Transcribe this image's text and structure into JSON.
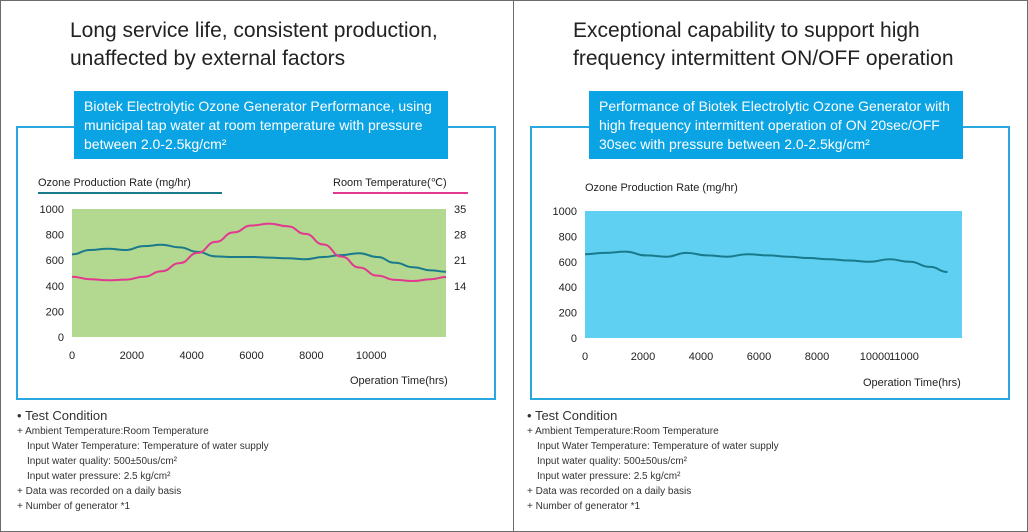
{
  "left": {
    "headline": [
      "Long service life, consistent production,",
      "unaffected by external factors"
    ],
    "box_text": [
      "Biotek Electrolytic Ozone Generator Performance, using",
      "municipal tap water at room temperature with pressure",
      "between 2.0-2.5kg/cm²"
    ],
    "test_condition": {
      "title": "Test Condition",
      "lines": [
        "+ Ambient Temperature:Room Temperature",
        "   Input Water Temperature: Temperature of water supply",
        "   Input water quality: 500±50us/cm²",
        "   Input water pressure: 2.5 kg/cm²",
        "+ Data was recorded on a daily basis",
        "+ Number of generator *1"
      ]
    }
  },
  "right": {
    "headline": [
      "Exceptional capability to support high",
      "frequency intermittent ON/OFF operation"
    ],
    "box_text": [
      "Performance of Biotek Electrolytic Ozone Generator with",
      "high frequency intermittent operation of ON 20sec/OFF",
      "30sec with pressure between 2.0-2.5kg/cm²"
    ],
    "test_condition": {
      "title": "Test Condition",
      "lines": [
        "+ Ambient Temperature:Room Temperature",
        "   Input Water Temperature: Temperature of water supply",
        "   Input water quality: 500±50us/cm²",
        "   Input water pressure: 2.5 kg/cm²",
        "+ Data was recorded on a daily basis",
        "+ Number of generator *1"
      ]
    }
  },
  "colors": {
    "accent_blue": "#0aa3e4",
    "frame_blue": "#29a8e0",
    "ozone_line": "#1a7a8c",
    "temp_line": "#e2388f",
    "left_plot_bg": "#b3d88f",
    "right_plot_bg": "#5fd0f2"
  },
  "chart_data": [
    {
      "type": "line",
      "title": "",
      "xlabel": "Operation Time(hrs)",
      "ylabel": "Ozone Production Rate (mg/hr)",
      "y2label": "Room Temperature(℃)",
      "xlim": [
        0,
        12500
      ],
      "ylim": [
        0,
        1000
      ],
      "y2lim": [
        0,
        35
      ],
      "x_ticks": [
        "0",
        "2000",
        "4000",
        "6000",
        "8000",
        "10000"
      ],
      "x_tick_values": [
        0,
        2000,
        4000,
        6000,
        8000,
        10000
      ],
      "y_ticks": [
        "0",
        "200",
        "400",
        "600",
        "800",
        "1000"
      ],
      "y_tick_values": [
        0,
        200,
        400,
        600,
        800,
        1000
      ],
      "y2_ticks": [
        "14",
        "21",
        "28",
        "35"
      ],
      "y2_tick_values": [
        14,
        21,
        28,
        35
      ],
      "grid": false,
      "legend": "top",
      "series": [
        {
          "name": "Ozone Production Rate (mg/hr)",
          "axis": "left",
          "color": "#1a7a8c",
          "x": [
            0,
            600,
            1200,
            1800,
            2400,
            3000,
            3600,
            4200,
            4800,
            5400,
            6000,
            6600,
            7200,
            7800,
            8400,
            9000,
            9600,
            10200,
            10800,
            11400,
            12000,
            12500
          ],
          "y": [
            645,
            680,
            690,
            680,
            710,
            720,
            700,
            665,
            630,
            625,
            625,
            620,
            615,
            608,
            625,
            640,
            655,
            625,
            580,
            545,
            520,
            510
          ]
        },
        {
          "name": "Room Temperature(℃)",
          "axis": "right",
          "color": "#e2388f",
          "x": [
            0,
            600,
            1200,
            1800,
            2400,
            3000,
            3600,
            4200,
            4800,
            5400,
            6000,
            6600,
            7200,
            7800,
            8400,
            9000,
            9600,
            10200,
            10800,
            11400,
            12000,
            12500
          ],
          "y": [
            16.5,
            15.8,
            15.5,
            15.7,
            16.5,
            18.0,
            20.2,
            23.0,
            26.0,
            28.6,
            30.5,
            31.0,
            30.3,
            28.2,
            25.3,
            22.0,
            19.0,
            16.8,
            15.6,
            15.3,
            15.8,
            16.4
          ]
        }
      ]
    },
    {
      "type": "line",
      "title": "",
      "xlabel": "Operation Time(hrs)",
      "ylabel": "Ozone Production Rate (mg/hr)",
      "xlim": [
        0,
        13000
      ],
      "ylim": [
        0,
        1000
      ],
      "x_ticks": [
        "0",
        "2000",
        "4000",
        "6000",
        "8000",
        "10000",
        "11000"
      ],
      "x_tick_values": [
        0,
        2000,
        4000,
        6000,
        8000,
        10000,
        11000
      ],
      "y_ticks": [
        "0",
        "200",
        "400",
        "600",
        "800",
        "1000"
      ],
      "y_tick_values": [
        0,
        200,
        400,
        600,
        800,
        1000
      ],
      "grid": false,
      "legend": "none",
      "series": [
        {
          "name": "",
          "axis": "left",
          "color": "#1a7a8c",
          "x": [
            0,
            700,
            1400,
            2100,
            2800,
            3500,
            4200,
            4900,
            5600,
            6300,
            7000,
            7700,
            8400,
            9100,
            9800,
            10500,
            11200,
            11900,
            12500
          ],
          "y": [
            660,
            670,
            680,
            650,
            640,
            670,
            650,
            640,
            660,
            650,
            640,
            630,
            620,
            610,
            600,
            620,
            600,
            560,
            520
          ]
        }
      ]
    }
  ]
}
